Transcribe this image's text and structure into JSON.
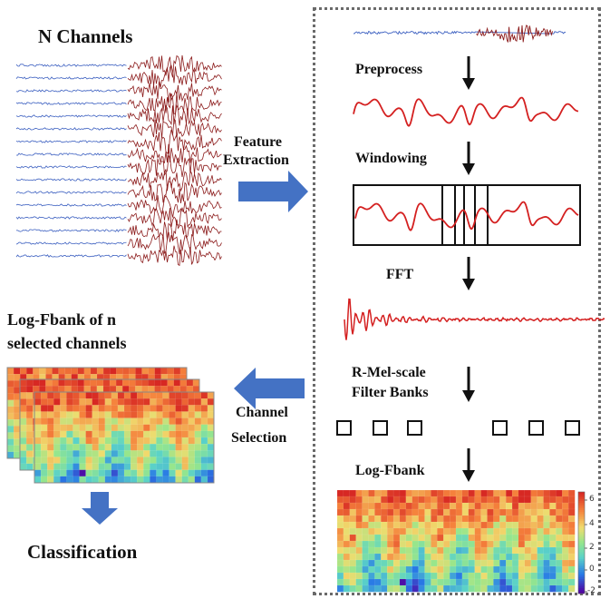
{
  "left": {
    "title": "N Channels",
    "logfbank_title_line1": "Log-Fbank of n",
    "logfbank_title_line2": "selected channels",
    "classification": "Classification"
  },
  "arrows": {
    "feature_line1": "Feature",
    "feature_line2": "Extraction",
    "channel_line1": "Channel",
    "channel_line2": "Selection"
  },
  "pipeline": {
    "preprocess": "Preprocess",
    "windowing": "Windowing",
    "fft": "FFT",
    "rmel_line1": "R-Mel-scale",
    "rmel_line2": "Filter Banks",
    "logfbank": "Log-Fbank"
  },
  "colorbar": {
    "ticks": [
      "6",
      "4",
      "2",
      "0",
      "-2"
    ]
  },
  "colors": {
    "signal_red": "#d42020",
    "eeg_blue": "#3b5fc0",
    "eeg_dark_red": "#8b1a1a",
    "arrow_blue": "#4472c4",
    "black_arrow": "#111111"
  }
}
